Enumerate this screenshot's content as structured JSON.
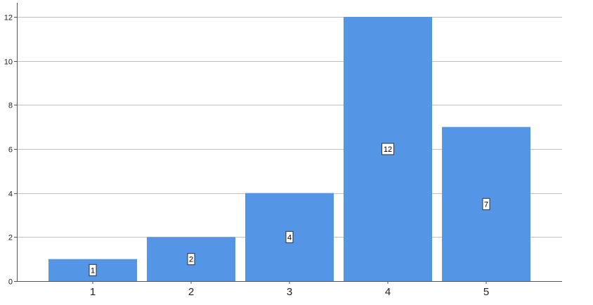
{
  "chart_data": {
    "type": "bar",
    "title": "",
    "xlabel": "",
    "ylabel": "",
    "categories": [
      "1",
      "2",
      "3",
      "4",
      "5"
    ],
    "values": [
      1,
      2,
      4,
      12,
      7
    ],
    "data_labels": [
      "1",
      "2",
      "4",
      "12",
      "7"
    ],
    "ylim": [
      0,
      12
    ],
    "yticks": [
      0,
      2,
      4,
      6,
      8,
      10,
      12
    ],
    "ytick_labels": [
      "0",
      "2",
      "4",
      "6",
      "8",
      "10",
      "12"
    ],
    "grid": true,
    "legend": "none",
    "colors": {
      "bar": "#5595e5",
      "grid": "#bfbfbf",
      "axis": "#555555",
      "label_box_fill": "#ffffff",
      "label_box_stroke": "#333333"
    }
  }
}
